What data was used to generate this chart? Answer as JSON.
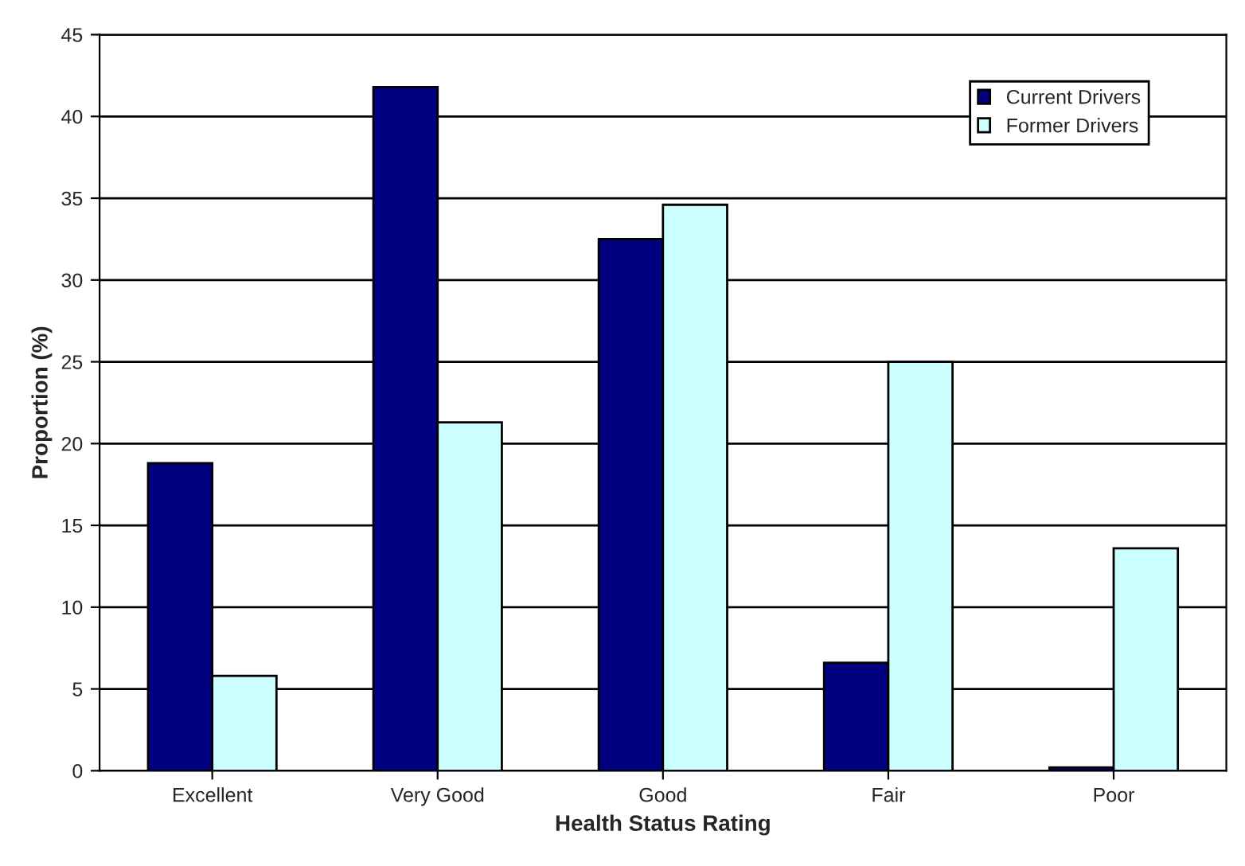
{
  "chart_data": {
    "type": "bar",
    "xlabel": "Health Status Rating",
    "ylabel": "Proportion (%)",
    "categories": [
      "Excellent",
      "Very Good",
      "Good",
      "Fair",
      "Poor"
    ],
    "series": [
      {
        "name": "Current Drivers",
        "color": "#000080",
        "values": [
          18.8,
          41.8,
          32.5,
          6.6,
          0.2
        ]
      },
      {
        "name": "Former Drivers",
        "color": "#ccffff",
        "values": [
          5.8,
          21.3,
          34.6,
          25.0,
          13.6
        ]
      }
    ],
    "ylim": [
      0,
      45
    ],
    "yticks": [
      0,
      5,
      10,
      15,
      20,
      25,
      30,
      35,
      40,
      45
    ],
    "grid": "y",
    "legend": "top right"
  }
}
